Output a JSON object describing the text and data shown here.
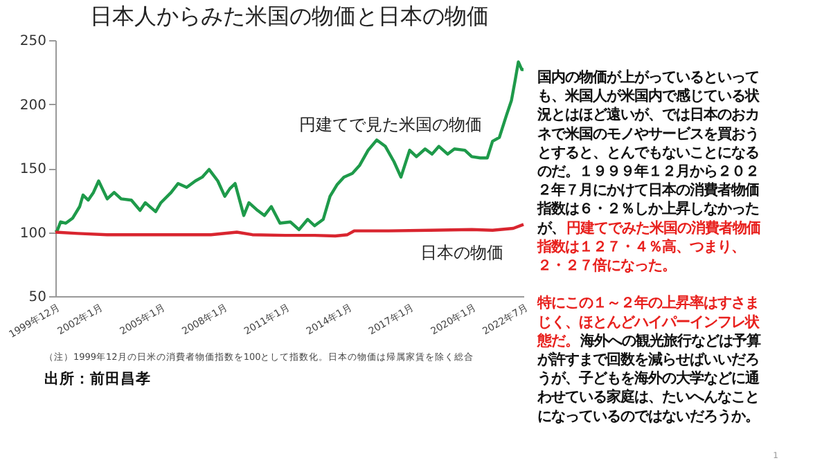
{
  "chart_data": {
    "type": "line",
    "title": "日本人からみた米国の物価と日本の物価",
    "xlim": [
      "1999-12",
      "2022-07"
    ],
    "xticks": [
      {
        "value": "1999-12",
        "label": "1999年12月"
      },
      {
        "value": "2002-01",
        "label": "2002年1月"
      },
      {
        "value": "2005-01",
        "label": "2005年1月"
      },
      {
        "value": "2008-01",
        "label": "2008年1月"
      },
      {
        "value": "2011-01",
        "label": "2011年1月"
      },
      {
        "value": "2014-01",
        "label": "2014年1月"
      },
      {
        "value": "2017-01",
        "label": "2017年1月"
      },
      {
        "value": "2020-01",
        "label": "2020年1月"
      },
      {
        "value": "2022-07",
        "label": "2022年7月"
      }
    ],
    "ylim": [
      50,
      250
    ],
    "yticks": [
      50,
      100,
      150,
      200,
      250
    ],
    "grid": false,
    "legend": false,
    "marker": "none",
    "line_style": "solid",
    "series": [
      {
        "name": "円建てで見た米国の物価",
        "color": "#1e9a4a",
        "x": [
          "1999-12",
          "2000-01",
          "2000-03",
          "2000-06",
          "2000-10",
          "2001-02",
          "2001-04",
          "2001-07",
          "2001-10",
          "2002-01",
          "2002-06",
          "2002-10",
          "2003-02",
          "2003-08",
          "2004-01",
          "2004-04",
          "2004-10",
          "2005-01",
          "2005-07",
          "2005-11",
          "2006-04",
          "2006-09",
          "2007-01",
          "2007-05",
          "2007-10",
          "2008-02",
          "2008-05",
          "2008-08",
          "2009-01",
          "2009-04",
          "2009-09",
          "2010-01",
          "2010-05",
          "2010-10",
          "2011-04",
          "2011-09",
          "2012-02",
          "2012-06",
          "2012-11",
          "2013-03",
          "2013-07",
          "2013-11",
          "2014-04",
          "2014-08",
          "2015-01",
          "2015-06",
          "2015-11",
          "2016-04",
          "2016-08",
          "2017-01",
          "2017-05",
          "2017-10",
          "2018-02",
          "2018-06",
          "2018-11",
          "2019-03",
          "2019-09",
          "2020-01",
          "2020-06",
          "2020-10",
          "2021-01",
          "2021-05",
          "2021-09",
          "2021-12",
          "2022-02",
          "2022-04",
          "2022-06",
          "2022-07"
        ],
        "values": [
          100,
          101,
          108,
          107,
          111,
          120,
          129,
          125,
          131,
          140,
          126,
          131,
          126,
          125,
          117,
          123,
          116,
          123,
          131,
          138,
          135,
          140,
          143,
          149,
          140,
          128,
          134,
          138,
          113,
          123,
          117,
          113,
          120,
          107,
          108,
          102,
          110,
          105,
          110,
          128,
          137,
          143,
          146,
          152,
          164,
          172,
          167,
          155,
          143,
          164,
          159,
          165,
          161,
          167,
          161,
          165,
          164,
          159,
          158,
          158,
          171,
          174,
          191,
          203,
          218,
          233,
          227,
          227
        ]
      },
      {
        "name": "日本の物価",
        "color": "#d9252f",
        "x": [
          "1999-12",
          "2001-01",
          "2002-06",
          "2005-01",
          "2007-06",
          "2008-09",
          "2009-06",
          "2011-01",
          "2012-06",
          "2013-06",
          "2014-01",
          "2014-05",
          "2016-01",
          "2018-01",
          "2020-01",
          "2021-01",
          "2022-01",
          "2022-07"
        ],
        "values": [
          100,
          99,
          98,
          98,
          98,
          100,
          98,
          97.5,
          97.5,
          97,
          98,
          101,
          101,
          101.5,
          102,
          101.5,
          103,
          106
        ]
      }
    ],
    "annotations": [
      "（注）1999年12月の日米の消費者物価指数を100として指数化。日本の物価は帰属家賃を除く総合",
      "出所：前田昌孝",
      "国内の物価が上がっているといって",
      "も、米国人が米国内で感じている状",
      "況とはほど遠いが、では日本のおカ",
      "ネで米国のモノやサービスを買おう",
      "とすると、とんでもないことになる",
      "のだ。１９９９年１２月から２０２",
      "２年７月にかけて日本の消費者物価",
      "指数は６・２％しか上昇しなかった",
      "が、",
      "円建てでみた米国の消費者物価",
      "指数は１２７・４％高、つまり、",
      "２・２７倍になった。",
      "特にこの１～２年の上昇率はすさま",
      "じく、ほとんどハイパーインフレ状",
      "態だ。",
      "海外への観光旅行などは予算",
      "が許すまで回数を減らせばいいだろ",
      "うが、子どもを海外の大学などに通",
      "わせている家庭は、たいへんなこと",
      "になっているのではないだろうか。",
      "1"
    ]
  }
}
